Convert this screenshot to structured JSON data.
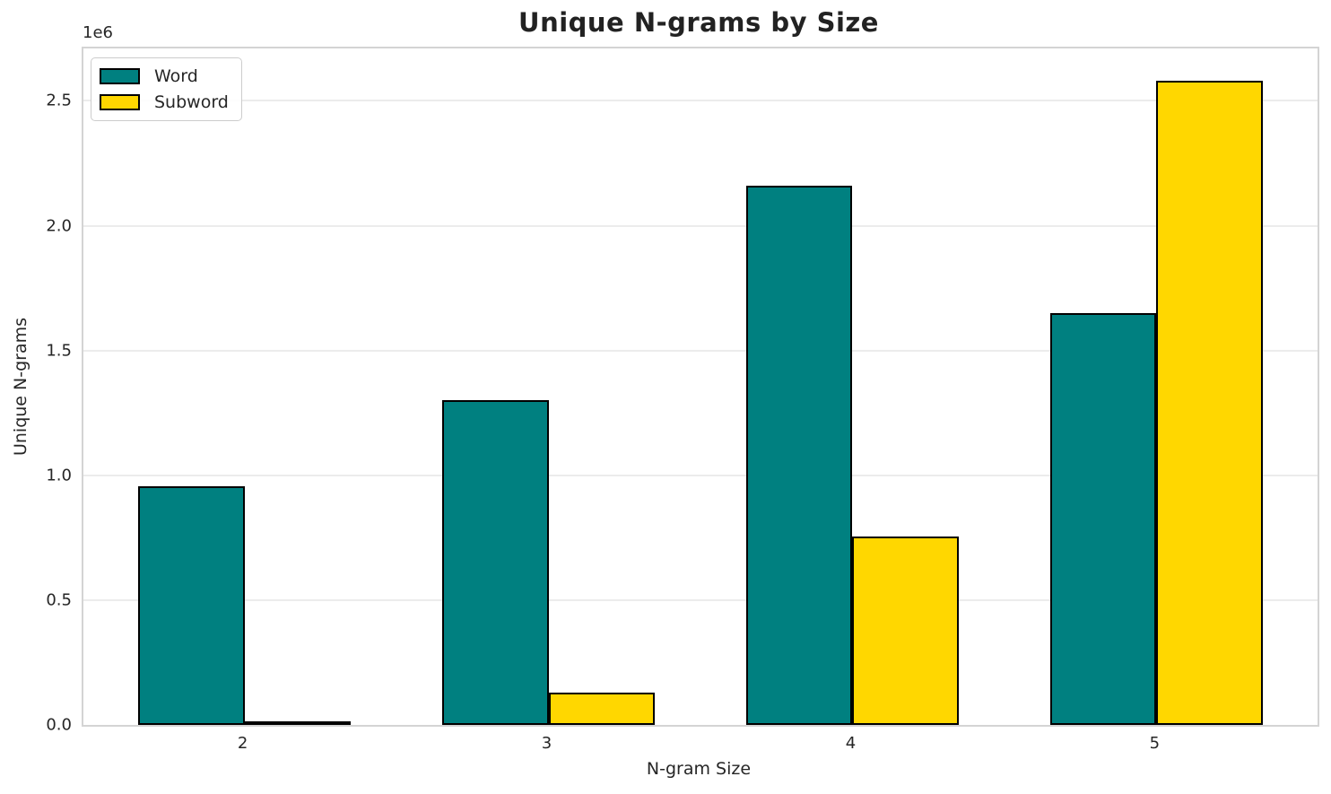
{
  "chart_data": {
    "type": "bar",
    "title": "Unique N-grams by Size",
    "xlabel": "N-gram Size",
    "ylabel": "Unique N-grams",
    "y_offset_text": "1e6",
    "y_unit_multiplier": 1000000,
    "categories": [
      "2",
      "3",
      "4",
      "5"
    ],
    "series": [
      {
        "name": "Word",
        "color": "#008080",
        "values": [
          955000,
          1300000,
          2160000,
          1650000
        ]
      },
      {
        "name": "Subword",
        "color": "#FFD700",
        "values": [
          15000,
          130000,
          755000,
          2580000
        ]
      }
    ],
    "ylim": [
      0,
      2710000
    ],
    "yticks": [
      0,
      500000,
      1000000,
      1500000,
      2000000,
      2500000
    ],
    "ytick_labels": [
      "0.0",
      "0.5",
      "1.0",
      "1.5",
      "2.0",
      "2.5"
    ],
    "grid": true,
    "legend_position": "upper left",
    "bar_edge_color": "#000000",
    "bar_width_data_fraction": 0.35,
    "x_margin": 0.53
  },
  "colors": {
    "text": "#262626",
    "grid": "#ececec",
    "spine": "#d4d4d4",
    "legend_border": "#cccccc",
    "background": "#ffffff"
  }
}
